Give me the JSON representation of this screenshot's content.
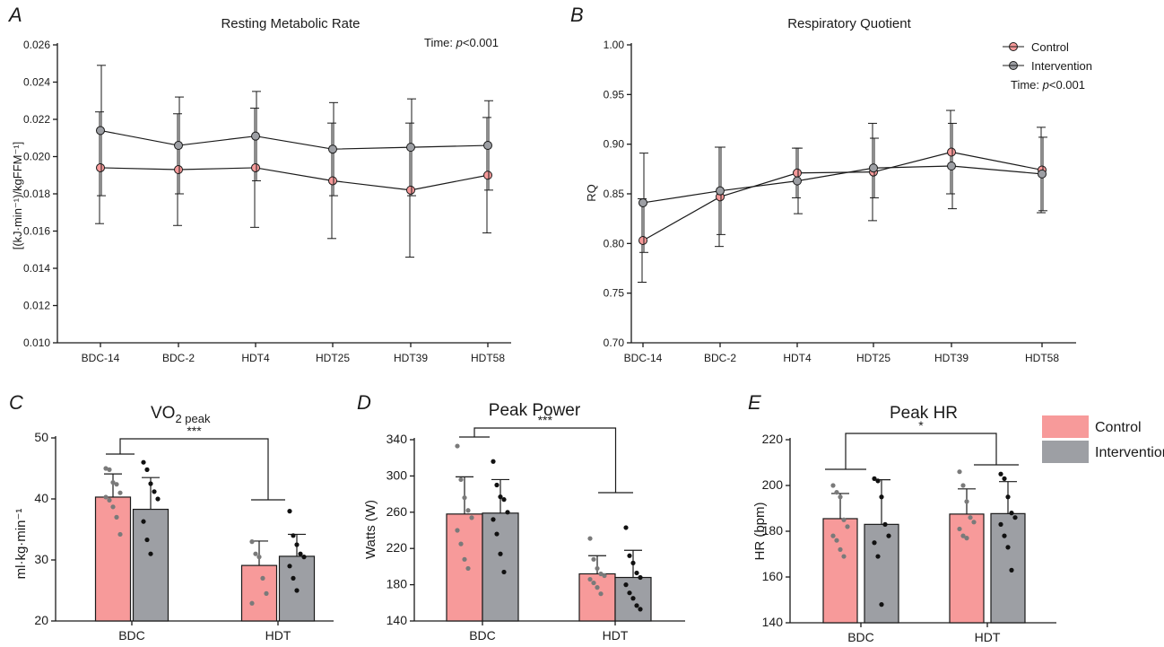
{
  "colors": {
    "control": "#f79a9a",
    "intervention": "#9d9fa4",
    "control_dot": "#7a7a7a",
    "intervention_dot": "#111111",
    "axis": "#1a1a1a"
  },
  "chart_data": [
    {
      "id": "A",
      "panel_label": "A",
      "type": "line",
      "title": "Resting Metabolic Rate",
      "ylabel": "[(kJ·min⁻¹)/kgFFM⁻¹]",
      "xlabel": "",
      "categories": [
        "BDC-14",
        "BDC-2",
        "HDT4",
        "HDT25",
        "HDT39",
        "HDT58"
      ],
      "ylim": [
        0.01,
        0.026
      ],
      "yticks": [
        0.01,
        0.012,
        0.014,
        0.016,
        0.018,
        0.02,
        0.022,
        0.024,
        0.026
      ],
      "ytick_labels": [
        "0.010",
        "0.012",
        "0.014",
        "0.016",
        "0.018",
        "0.020",
        "0.022",
        "0.024",
        "0.026"
      ],
      "series": [
        {
          "name": "Control",
          "values": [
            0.0194,
            0.0193,
            0.0194,
            0.0187,
            0.0182,
            0.019
          ],
          "err": [
            0.003,
            0.003,
            0.0032,
            0.0031,
            0.0036,
            0.0031
          ]
        },
        {
          "name": "Intervention",
          "values": [
            0.0214,
            0.0206,
            0.0211,
            0.0204,
            0.0205,
            0.0206
          ],
          "err": [
            0.0035,
            0.0026,
            0.0024,
            0.0025,
            0.0026,
            0.0024
          ]
        }
      ],
      "annotation": {
        "label": "Time: ",
        "italic": "p",
        "rest": "<0.001"
      }
    },
    {
      "id": "B",
      "panel_label": "B",
      "type": "line",
      "title": "Respiratory Quotient",
      "ylabel": "RQ",
      "xlabel": "",
      "categories": [
        "BDC-14",
        "BDC-2",
        "HDT4",
        "HDT25",
        "HDT39",
        "HDT58"
      ],
      "ylim": [
        0.7,
        1.0
      ],
      "yticks": [
        0.7,
        0.75,
        0.8,
        0.85,
        0.9,
        0.95,
        1.0
      ],
      "ytick_labels": [
        "0.70",
        "0.75",
        "0.80",
        "0.85",
        "0.90",
        "0.95",
        "1.00"
      ],
      "series": [
        {
          "name": "Control",
          "values": [
            0.803,
            0.847,
            0.871,
            0.872,
            0.892,
            0.874
          ],
          "err": [
            0.042,
            0.05,
            0.025,
            0.049,
            0.042,
            0.043
          ]
        },
        {
          "name": "Intervention",
          "values": [
            0.841,
            0.853,
            0.863,
            0.876,
            0.878,
            0.87
          ],
          "err": [
            0.05,
            0.044,
            0.033,
            0.03,
            0.043,
            0.037
          ]
        }
      ],
      "legend": [
        "Control",
        "Intervention"
      ],
      "legend_position": "top-right",
      "annotation": {
        "label": "Time: ",
        "italic": "p",
        "rest": "<0.001"
      }
    },
    {
      "id": "C",
      "panel_label": "C",
      "type": "bar",
      "title": "VO",
      "title_sub": "2 peak",
      "ylabel": "ml·kg·min⁻¹",
      "xlabel": "",
      "categories": [
        "BDC",
        "HDT"
      ],
      "ylim": [
        20,
        50
      ],
      "yticks": [
        20,
        30,
        40,
        50
      ],
      "ytick_labels": [
        "20",
        "30",
        "40",
        "50"
      ],
      "series": [
        {
          "name": "Control",
          "values": [
            40.3,
            29.1
          ],
          "err": [
            3.8,
            4.0
          ],
          "points": [
            [
              45.0,
              44.8,
              42.7,
              42.4,
              41.0,
              40.3,
              39.8,
              38.7,
              37.0,
              34.2
            ],
            [
              33.0,
              31.0,
              30.5,
              27.0,
              24.5,
              22.9
            ]
          ]
        },
        {
          "name": "Intervention",
          "values": [
            38.3,
            30.6
          ],
          "err": [
            5.2,
            3.6
          ],
          "points": [
            [
              46.0,
              44.8,
              42.5,
              41.2,
              40.0,
              36.3,
              33.3,
              31.0
            ],
            [
              38.0,
              34.0,
              32.5,
              31.0,
              30.5,
              29.0,
              27.0,
              25.0
            ]
          ]
        }
      ],
      "significance": {
        "label": "***"
      }
    },
    {
      "id": "D",
      "panel_label": "D",
      "type": "bar",
      "title": "Peak Power",
      "ylabel": "Watts (W)",
      "xlabel": "",
      "categories": [
        "BDC",
        "HDT"
      ],
      "ylim": [
        140,
        340
      ],
      "yticks": [
        140,
        180,
        220,
        260,
        300,
        340
      ],
      "ytick_labels": [
        "140",
        "180",
        "220",
        "260",
        "300",
        "340"
      ],
      "series": [
        {
          "name": "Control",
          "values": [
            258,
            192
          ],
          "err": [
            41,
            20
          ],
          "points": [
            [
              333,
              296,
              276,
              262,
              254,
              240,
              225,
              208,
              198
            ],
            [
              231,
              208,
              198,
              192,
              190,
              186,
              182,
              177,
              170
            ]
          ]
        },
        {
          "name": "Intervention",
          "values": [
            259,
            188
          ],
          "err": [
            37,
            30
          ],
          "points": [
            [
              316,
              290,
              277,
              274,
              260,
              252,
              236,
              214,
              194
            ],
            [
              243,
              212,
              204,
              193,
              188,
              180,
              171,
              165,
              157,
              153
            ]
          ]
        }
      ],
      "significance": {
        "label": "***"
      }
    },
    {
      "id": "E",
      "panel_label": "E",
      "type": "bar",
      "title": "Peak HR",
      "ylabel": "HR (bpm)",
      "xlabel": "",
      "categories": [
        "BDC",
        "HDT"
      ],
      "ylim": [
        140,
        220
      ],
      "yticks": [
        140,
        160,
        180,
        200,
        220
      ],
      "ytick_labels": [
        "140",
        "160",
        "180",
        "200",
        "220"
      ],
      "series": [
        {
          "name": "Control",
          "values": [
            185.5,
            187.5
          ],
          "err": [
            11,
            11
          ],
          "points": [
            [
              200,
              197,
              195,
              185,
              182,
              178,
              176,
              172,
              169
            ],
            [
              206,
              200,
              193,
              186,
              184,
              181,
              178,
              177
            ]
          ]
        },
        {
          "name": "Intervention",
          "values": [
            183,
            187.7
          ],
          "err": [
            19.5,
            14
          ],
          "points": [
            [
              203,
              202,
              195,
              183,
              178,
              175,
              169,
              148
            ],
            [
              205,
              203,
              195,
              188,
              186,
              183,
              178,
              173,
              163
            ]
          ]
        }
      ],
      "legend": [
        "Control",
        "Intervention"
      ],
      "legend_position": "top-right",
      "significance": {
        "label": "*"
      }
    }
  ]
}
